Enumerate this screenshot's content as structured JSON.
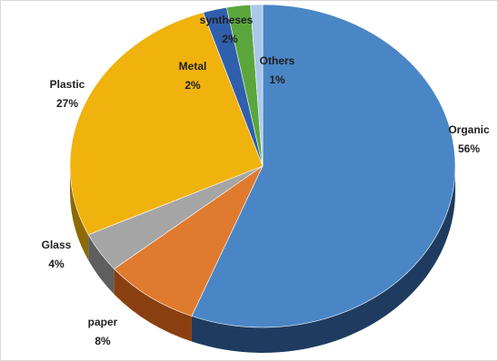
{
  "chart_data": {
    "type": "pie",
    "style": "3d",
    "legend": "none",
    "slices": [
      {
        "label": "Organic",
        "percent_label": "56%",
        "value": 56,
        "color": "#4a86c5",
        "side_color": "#1f3c60"
      },
      {
        "label": "paper",
        "percent_label": "8%",
        "value": 8,
        "color": "#e07a2e",
        "side_color": "#8a3f10"
      },
      {
        "label": "Glass",
        "percent_label": "4%",
        "value": 4,
        "color": "#a5a5a5",
        "side_color": "#5e5e5e"
      },
      {
        "label": "Plastic",
        "percent_label": "27%",
        "value": 27,
        "color": "#f0b20c",
        "side_color": "#8c6a05"
      },
      {
        "label": "Metal",
        "percent_label": "2%",
        "value": 2,
        "color": "#2f5fad",
        "side_color": "#1a3566"
      },
      {
        "label": "syntheses",
        "percent_label": "2%",
        "value": 2,
        "color": "#5aa63c",
        "side_color": "#2f5c1e"
      },
      {
        "label": "Others",
        "percent_label": "1%",
        "value": 1,
        "color": "#a9c8ea",
        "side_color": "#5f7fa3"
      }
    ]
  }
}
